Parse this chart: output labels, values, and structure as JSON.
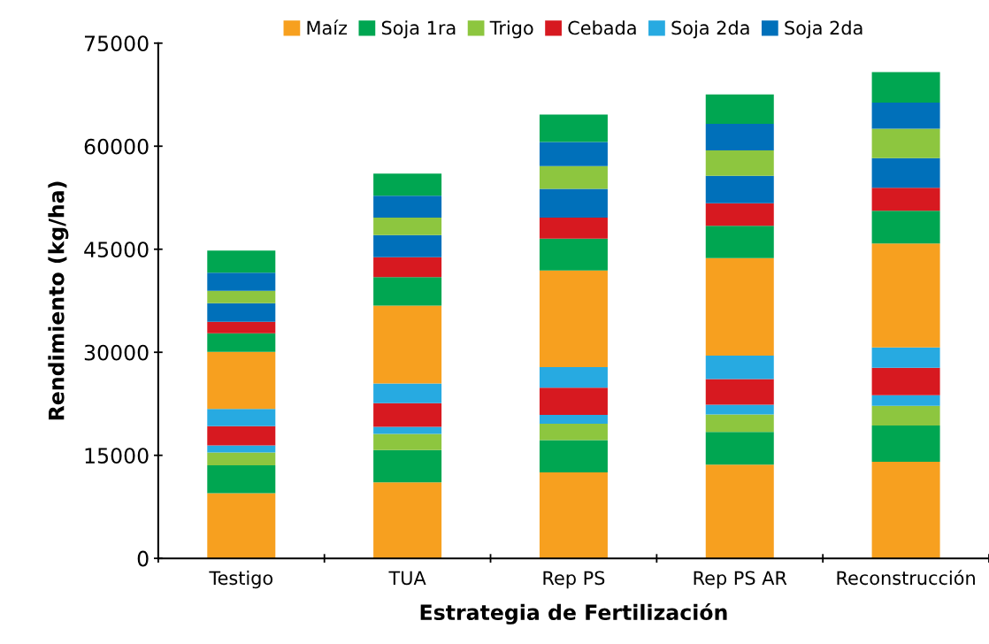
{
  "chart_data": {
    "type": "bar",
    "stacked": true,
    "xlabel": "Estrategia de Fertilización",
    "ylabel": "Rendimiento (kg/ha)",
    "categories": [
      "Testigo",
      "TUA",
      "Rep PS",
      "Rep PS AR",
      "Reconstrucción"
    ],
    "ylim": [
      0,
      75000
    ],
    "yticks": [
      0,
      15000,
      30000,
      45000,
      60000,
      75000
    ],
    "grid": false,
    "legend": "top",
    "series": [
      {
        "name": "Maíz",
        "color": "#f7a01f",
        "values": [
          9500,
          11050,
          12500,
          13650,
          14050
        ]
      },
      {
        "name": "Soja 1ra",
        "color": "#00a651",
        "values": [
          4050,
          4700,
          4700,
          4750,
          5300
        ]
      },
      {
        "name": "Trigo",
        "color": "#8dc63f",
        "values": [
          1850,
          2350,
          2400,
          2550,
          2850
        ]
      },
      {
        "color": "#27aae1",
        "values": [
          1050,
          1050,
          1300,
          1400,
          1550
        ]
      },
      {
        "name": "Cebada",
        "color": "#d71920",
        "values": [
          2800,
          3450,
          3950,
          3750,
          4000
        ]
      },
      {
        "name": "Soja 2da",
        "color": "#27aae1",
        "values": [
          2500,
          2850,
          3000,
          3400,
          2950
        ]
      },
      {
        "color": "#f7a01f",
        "values": [
          8300,
          11350,
          14050,
          14200,
          15150
        ]
      },
      {
        "color": "#00a651",
        "values": [
          2700,
          4150,
          4650,
          4700,
          4750
        ]
      },
      {
        "color": "#d71920",
        "values": [
          1700,
          2900,
          3050,
          3300,
          3350
        ]
      },
      {
        "name": "Soja 2da",
        "color": "#0070ba",
        "values": [
          2700,
          3200,
          4200,
          4000,
          4300
        ]
      },
      {
        "color": "#8dc63f",
        "values": [
          1800,
          2550,
          3300,
          3700,
          4300
        ]
      },
      {
        "color": "#0070ba",
        "values": [
          2650,
          3200,
          3500,
          3850,
          3800
        ]
      },
      {
        "color": "#00a651",
        "values": [
          3200,
          3200,
          4000,
          4300,
          4450
        ]
      }
    ]
  }
}
